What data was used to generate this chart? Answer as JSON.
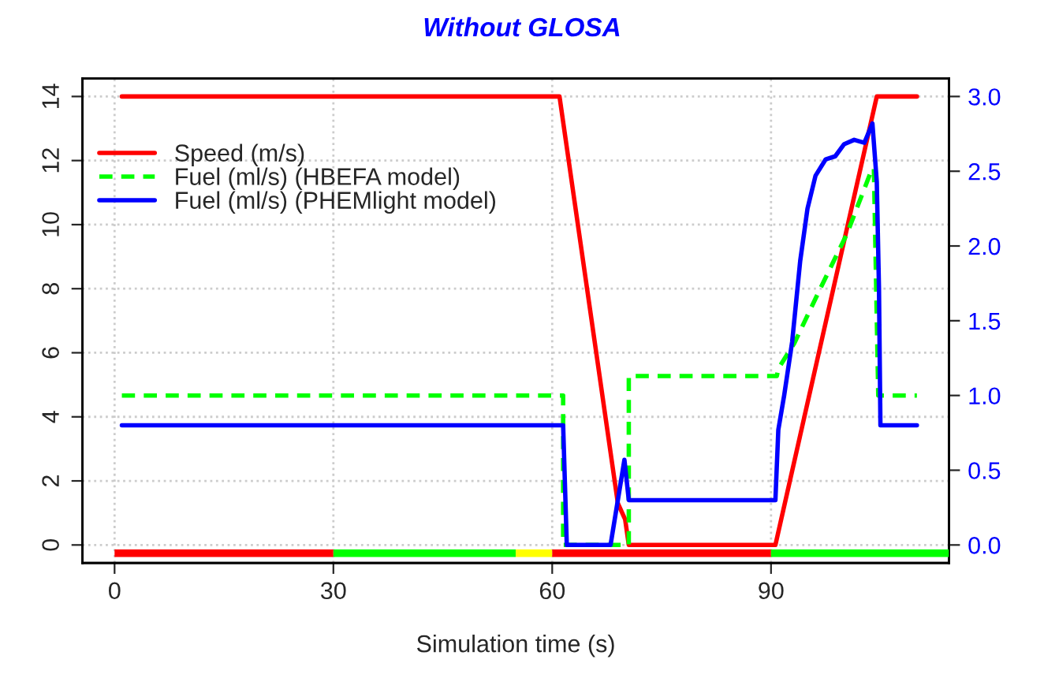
{
  "chart_data": [
    {
      "type": "line",
      "title": "Without GLOSA",
      "xlabel": "Simulation time (s)",
      "xlim": [
        -4.4,
        114.4
      ],
      "xticks": [
        0,
        30,
        60,
        90
      ],
      "ylim": [
        -0.56,
        14.56
      ],
      "yticks": [
        0,
        2,
        4,
        6,
        8,
        10,
        12,
        14
      ],
      "y2lim": [
        -0.12,
        3.12
      ],
      "y2ticks": [
        {
          "value": 0,
          "label": "0.0"
        },
        {
          "value": 0.5,
          "label": "0.5"
        },
        {
          "value": 1,
          "label": "1.0"
        },
        {
          "value": 1.5,
          "label": "1.5"
        },
        {
          "value": 2,
          "label": "2.0"
        },
        {
          "value": 2.5,
          "label": "2.5"
        },
        {
          "value": 3,
          "label": "3.0"
        }
      ],
      "grid": true,
      "legend": "top left",
      "series": [
        {
          "name": "Speed (m/s)",
          "color": "#ff0000",
          "line_style": "solid",
          "x": [
            1,
            61,
            69,
            70,
            70.5,
            90.6,
            104.5,
            110
          ],
          "values": [
            14,
            14,
            1.3,
            0.8,
            0,
            0,
            14,
            14
          ]
        },
        {
          "name": "Fuel (ml/s) (HBEFA model)",
          "color": "#00ff00",
          "line_style": "dashed",
          "axis": "y2",
          "x": [
            1,
            61.5,
            61.5,
            70.5,
            70.5,
            90.8,
            91,
            93.2,
            96.8,
            100.4,
            103.8,
            104.1,
            104.7,
            110
          ],
          "values": [
            1.0,
            1.0,
            0,
            0,
            1.13,
            1.13,
            1.18,
            1.35,
            1.72,
            2.08,
            2.51,
            2.52,
            1.0,
            1.0
          ]
        },
        {
          "name": "Fuel (ml/s) (PHEMlight model)",
          "color": "#0000ff",
          "line_style": "solid",
          "axis": "y2",
          "x": [
            1,
            61.5,
            62,
            68,
            69.9,
            70.5,
            90.6,
            91,
            91.8,
            92.9,
            94,
            95,
            96.1,
            97.5,
            98.8,
            100,
            101.4,
            102.8,
            103.9,
            104.5,
            104.8,
            105,
            110
          ],
          "values": [
            0.8,
            0.8,
            0,
            0,
            0.57,
            0.3,
            0.3,
            0.77,
            1.0,
            1.36,
            1.9,
            2.25,
            2.47,
            2.58,
            2.6,
            2.68,
            2.71,
            2.69,
            2.82,
            2.43,
            1.72,
            0.8,
            0.8
          ]
        }
      ]
    },
    {
      "type": "bar",
      "orientation": "horizontal",
      "stacked": true,
      "categories": [
        null
      ],
      "xlim": [
        -4.4,
        114.4
      ],
      "tick_labels": false,
      "series": [
        {
          "color": "#ff0000",
          "values": [
            30
          ]
        },
        {
          "color": "#00ff00",
          "values": [
            25
          ]
        },
        {
          "color": "#ffff00",
          "values": [
            5
          ]
        },
        {
          "color": "#ff0000",
          "values": [
            30
          ]
        },
        {
          "color": "#00ff00",
          "values": [
            24.4
          ]
        }
      ]
    }
  ]
}
